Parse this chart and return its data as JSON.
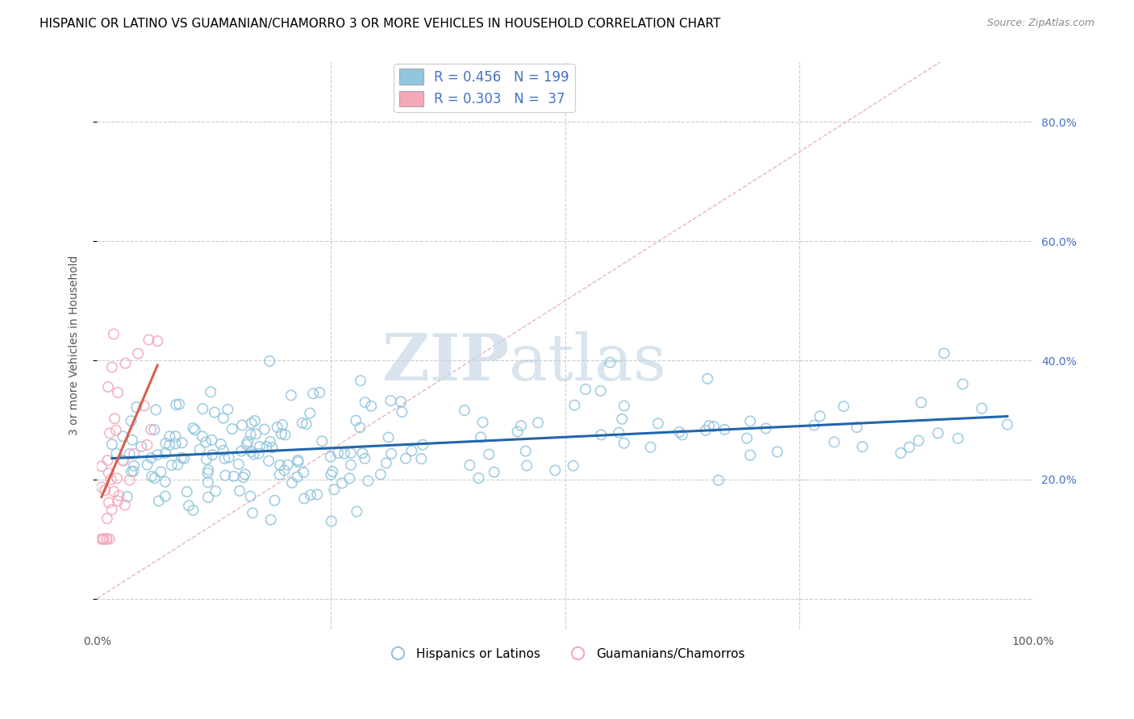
{
  "title": "HISPANIC OR LATINO VS GUAMANIAN/CHAMORRO 3 OR MORE VEHICLES IN HOUSEHOLD CORRELATION CHART",
  "source": "Source: ZipAtlas.com",
  "ylabel": "3 or more Vehicles in Household",
  "xlabel": "",
  "xlim": [
    0,
    1.0
  ],
  "ylim": [
    -0.05,
    0.9
  ],
  "blue_R": 0.456,
  "blue_N": 199,
  "pink_R": 0.303,
  "pink_N": 37,
  "blue_color": "#92c5de",
  "pink_color": "#f4a7b9",
  "blue_line_color": "#2166ac",
  "pink_line_color": "#d6604d",
  "diagonal_color": "#cccccc",
  "watermark_zip": "ZIP",
  "watermark_atlas": "atlas",
  "legend_label_blue": "Hispanics or Latinos",
  "legend_label_pink": "Guamanians/Chamorros",
  "tick_color": "#4472c4",
  "ytick_positions": [
    0.0,
    0.2,
    0.4,
    0.6,
    0.8
  ],
  "ytick_labels": [
    "",
    "20.0%",
    "40.0%",
    "60.0%",
    "80.0%"
  ]
}
